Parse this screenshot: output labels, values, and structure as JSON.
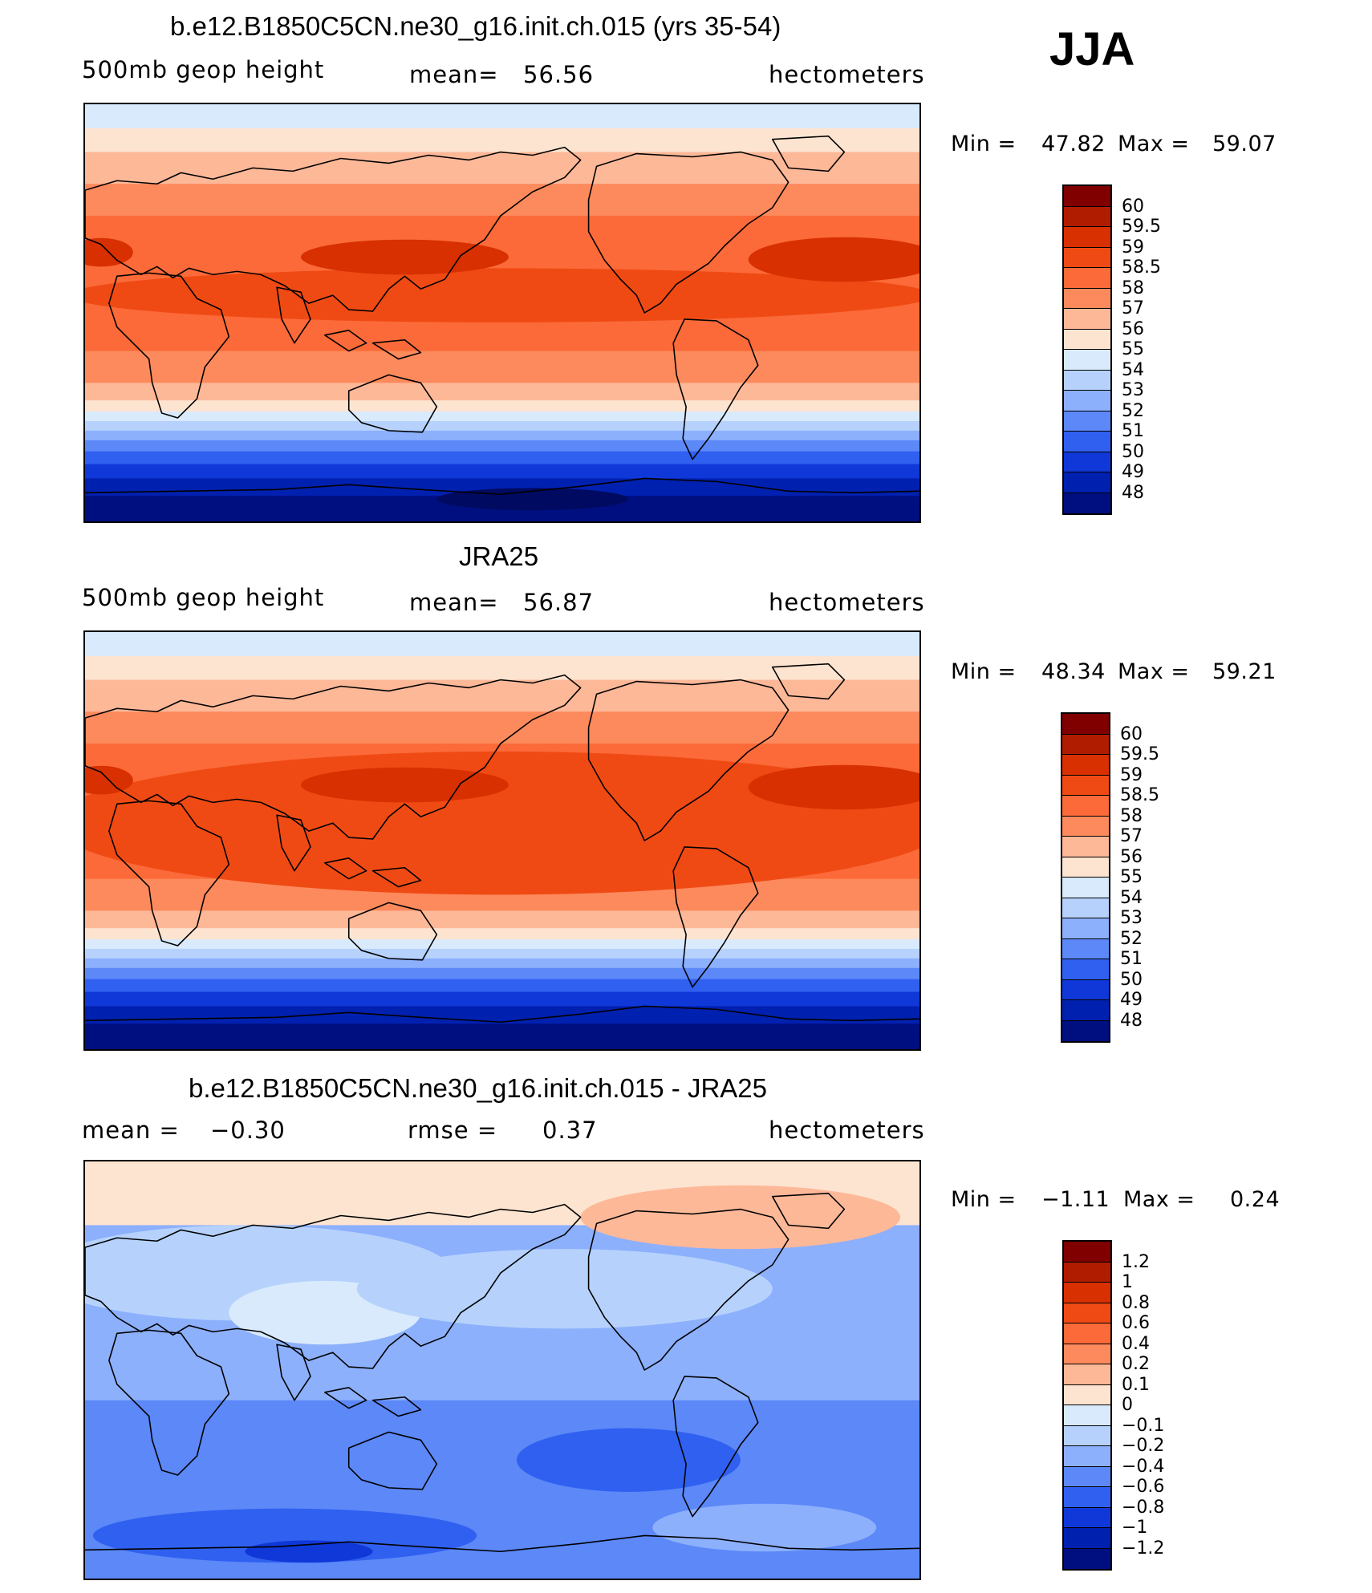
{
  "season": "JJA",
  "panels": [
    {
      "title": "b.e12.B1850C5CN.ne30_g16.init.ch.015 (yrs 35-54)",
      "left_label": "500mb  geop  height",
      "center_label": "mean=",
      "center_value": "56.56",
      "units": "hectometers",
      "min_label": "Min  =",
      "min_value": "47.82",
      "max_label": "Max  =",
      "max_value": "59.07",
      "field_type": "absolute",
      "colorbar": {
        "labels": [
          "60",
          "59.5",
          "59",
          "58.5",
          "58",
          "57",
          "56",
          "55",
          "54",
          "53",
          "52",
          "51",
          "50",
          "49",
          "48"
        ],
        "colors": [
          "#800000",
          "#b01c00",
          "#d83000",
          "#f04a14",
          "#fb6a38",
          "#fd8a5c",
          "#fdb898",
          "#fde4d0",
          "#d8eafc",
          "#b6d2fc",
          "#8cb0fc",
          "#5c88f8",
          "#3060f0",
          "#1038d8",
          "#0020b0",
          "#000f80"
        ]
      }
    },
    {
      "title": "JRA25",
      "left_label": "500mb  geop  height",
      "center_label": "mean=",
      "center_value": "56.87",
      "units": "hectometers",
      "min_label": "Min  =",
      "min_value": "48.34",
      "max_label": "Max  =",
      "max_value": "59.21",
      "field_type": "absolute",
      "colorbar": {
        "labels": [
          "60",
          "59.5",
          "59",
          "58.5",
          "58",
          "57",
          "56",
          "55",
          "54",
          "53",
          "52",
          "51",
          "50",
          "49",
          "48"
        ],
        "colors": [
          "#800000",
          "#b01c00",
          "#d83000",
          "#f04a14",
          "#fb6a38",
          "#fd8a5c",
          "#fdb898",
          "#fde4d0",
          "#d8eafc",
          "#b6d2fc",
          "#8cb0fc",
          "#5c88f8",
          "#3060f0",
          "#1038d8",
          "#0020b0",
          "#000f80"
        ]
      }
    },
    {
      "title": "b.e12.B1850C5CN.ne30_g16.init.ch.015 - JRA25",
      "left_label": "mean  =",
      "left_value": "−0.30",
      "center_label": "rmse  =",
      "center_value": "0.37",
      "units": "hectometers",
      "min_label": "Min  =",
      "min_value": "−1.11",
      "max_label": "Max  =",
      "max_value": "0.24",
      "field_type": "difference",
      "colorbar": {
        "labels": [
          "1.2",
          "1",
          "0.8",
          "0.6",
          "0.4",
          "0.2",
          "0.1",
          "0",
          "−0.1",
          "−0.2",
          "−0.4",
          "−0.6",
          "−0.8",
          "−1",
          "−1.2"
        ],
        "colors": [
          "#800000",
          "#b01c00",
          "#d83000",
          "#f04a14",
          "#fb6a38",
          "#fd8a5c",
          "#fdb898",
          "#fde4d0",
          "#d8eafc",
          "#b6d2fc",
          "#8cb0fc",
          "#5c88f8",
          "#3060f0",
          "#1038d8",
          "#0020b0",
          "#000f80"
        ]
      }
    }
  ]
}
